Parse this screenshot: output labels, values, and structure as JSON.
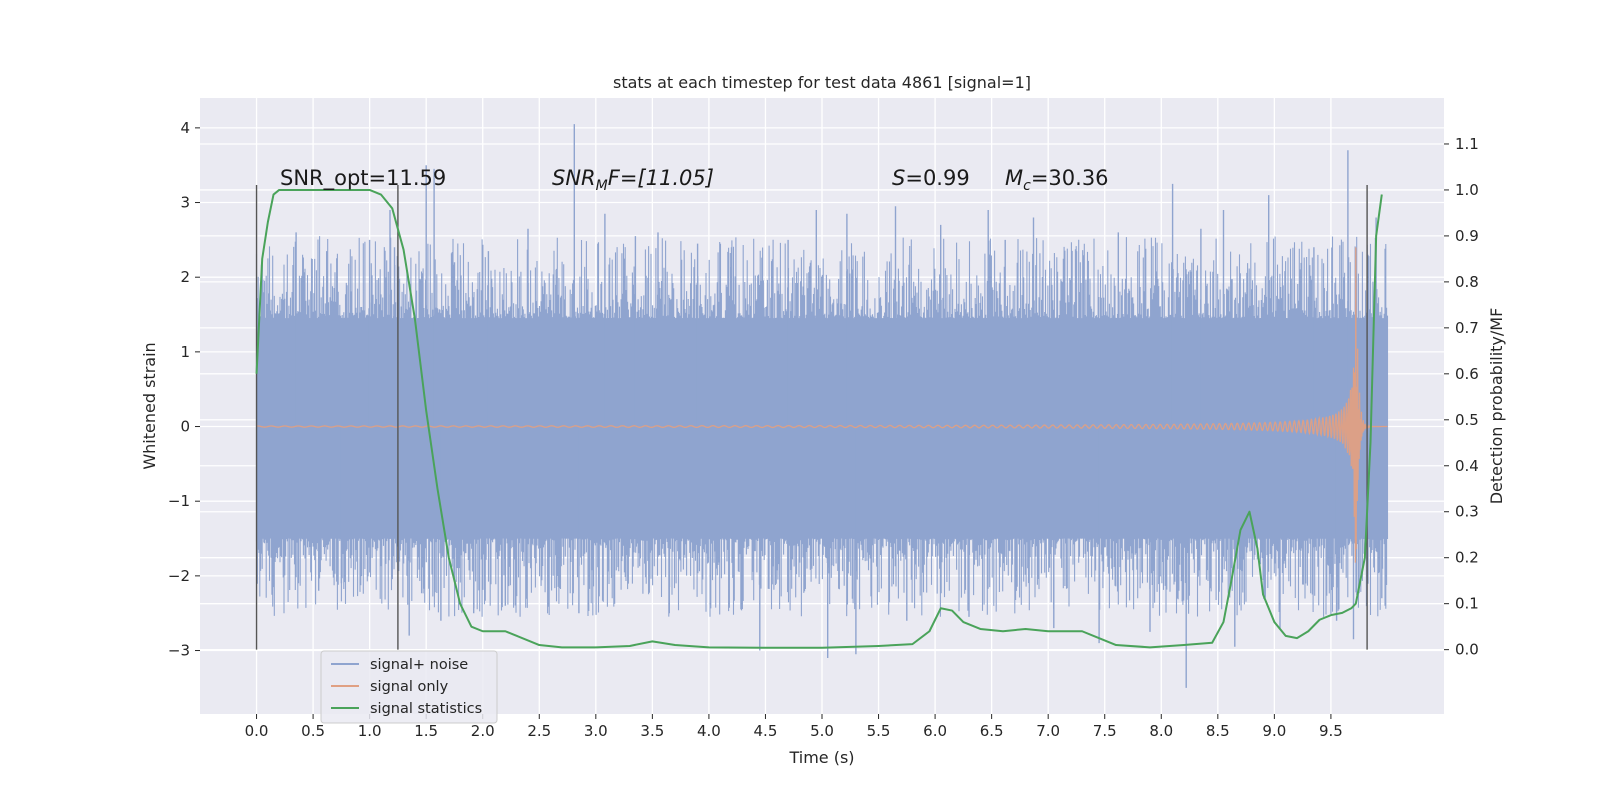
{
  "chart_data": {
    "type": "line",
    "title": "stats at each timestep for test data 4861 [signal=1]",
    "xlabel": "Time (s)",
    "ylabel": "Whitened strain",
    "y2label": "Detection probability/MF",
    "xlim": [
      -0.5,
      10.5
    ],
    "ylim": [
      -3.85,
      4.4
    ],
    "y2lim": [
      -0.14,
      1.2
    ],
    "x_ticks": [
      "0.0",
      "0.5",
      "1.0",
      "1.5",
      "2.0",
      "2.5",
      "3.0",
      "3.5",
      "4.0",
      "4.5",
      "5.0",
      "5.5",
      "6.0",
      "6.5",
      "7.0",
      "7.5",
      "8.0",
      "8.5",
      "9.0",
      "9.5"
    ],
    "y_ticks": [
      "−3",
      "−2",
      "−1",
      "0",
      "1",
      "2",
      "3",
      "4"
    ],
    "y2_ticks": [
      "0.0",
      "0.1",
      "0.2",
      "0.3",
      "0.4",
      "0.5",
      "0.6",
      "0.7",
      "0.8",
      "0.9",
      "1.0",
      "1.1"
    ],
    "grid": true,
    "legend_position": "lower-left",
    "annotations": {
      "snr_opt": "SNR_opt=11.59",
      "snr_mf_sym": "SNR",
      "snr_mf_sub": "M",
      "snr_mf_rest": "F=[11.05]",
      "s_sym": "S",
      "s_rest": "=0.99",
      "mc_sym": "M",
      "mc_sub": "c",
      "mc_rest": "=30.36"
    },
    "vertical_markers_x": [
      0.0,
      1.25,
      9.82
    ],
    "series": [
      {
        "name": "signal+ noise",
        "color": "#8fa4cf",
        "duration": [
          0.0,
          10.0
        ],
        "core_range": [
          -1.5,
          1.45
        ],
        "spikes": [
          {
            "x": 0.05,
            "y": 2.2
          },
          {
            "x": 0.15,
            "y": -2.15
          },
          {
            "x": 0.35,
            "y": 2.6
          },
          {
            "x": 0.55,
            "y": -2.2
          },
          {
            "x": 0.62,
            "y": 2.35
          },
          {
            "x": 0.75,
            "y": -2.1
          },
          {
            "x": 1.0,
            "y": 2.5
          },
          {
            "x": 1.18,
            "y": 2.9
          },
          {
            "x": 1.22,
            "y": 2.4
          },
          {
            "x": 1.35,
            "y": -2.8
          },
          {
            "x": 1.5,
            "y": 3.5
          },
          {
            "x": 1.57,
            "y": 3.45
          },
          {
            "x": 1.63,
            "y": -2.6
          },
          {
            "x": 1.75,
            "y": 2.2
          },
          {
            "x": 1.92,
            "y": -2.5
          },
          {
            "x": 2.05,
            "y": 2.35
          },
          {
            "x": 2.2,
            "y": -2.4
          },
          {
            "x": 2.4,
            "y": 2.65
          },
          {
            "x": 2.65,
            "y": 2.1
          },
          {
            "x": 2.81,
            "y": 4.05
          },
          {
            "x": 2.85,
            "y": -2.5
          },
          {
            "x": 3.08,
            "y": 2.85
          },
          {
            "x": 3.35,
            "y": 2.55
          },
          {
            "x": 3.55,
            "y": 2.6
          },
          {
            "x": 3.65,
            "y": -2.5
          },
          {
            "x": 3.9,
            "y": 2.45
          },
          {
            "x": 4.2,
            "y": 2.4
          },
          {
            "x": 4.45,
            "y": -3.0
          },
          {
            "x": 4.7,
            "y": 2.5
          },
          {
            "x": 4.95,
            "y": 2.9
          },
          {
            "x": 5.05,
            "y": -3.1
          },
          {
            "x": 5.22,
            "y": 2.85
          },
          {
            "x": 5.3,
            "y": -3.05
          },
          {
            "x": 5.65,
            "y": 2.95
          },
          {
            "x": 5.75,
            "y": -2.6
          },
          {
            "x": 6.05,
            "y": 2.7
          },
          {
            "x": 6.3,
            "y": -2.55
          },
          {
            "x": 6.47,
            "y": 2.9
          },
          {
            "x": 6.62,
            "y": 2.5
          },
          {
            "x": 6.87,
            "y": 2.8
          },
          {
            "x": 7.05,
            "y": -2.7
          },
          {
            "x": 7.25,
            "y": 2.35
          },
          {
            "x": 7.45,
            "y": -2.9
          },
          {
            "x": 7.62,
            "y": 2.6
          },
          {
            "x": 7.9,
            "y": -2.75
          },
          {
            "x": 8.1,
            "y": 3.25
          },
          {
            "x": 8.22,
            "y": -3.5
          },
          {
            "x": 8.35,
            "y": 2.65
          },
          {
            "x": 8.55,
            "y": 2.9
          },
          {
            "x": 8.65,
            "y": -2.95
          },
          {
            "x": 8.95,
            "y": 3.1
          },
          {
            "x": 9.05,
            "y": -2.7
          },
          {
            "x": 9.35,
            "y": 2.4
          },
          {
            "x": 9.55,
            "y": -2.6
          },
          {
            "x": 9.65,
            "y": 3.7
          },
          {
            "x": 9.7,
            "y": -2.85
          },
          {
            "x": 9.9,
            "y": 2.8
          },
          {
            "x": 9.95,
            "y": -2.3
          }
        ]
      },
      {
        "name": "signal only",
        "color": "#e0a083",
        "duration": [
          0.0,
          10.0
        ],
        "peak_time": 9.72,
        "peak_amplitude": 2.4
      },
      {
        "name": "signal statistics",
        "color": "#4aa35a",
        "axis": "right",
        "x": [
          0.0,
          0.05,
          0.1,
          0.15,
          0.2,
          0.3,
          0.5,
          0.8,
          1.0,
          1.1,
          1.2,
          1.3,
          1.4,
          1.5,
          1.6,
          1.7,
          1.8,
          1.9,
          2.0,
          2.1,
          2.2,
          2.3,
          2.5,
          2.7,
          3.0,
          3.3,
          3.5,
          3.7,
          4.0,
          4.5,
          5.0,
          5.5,
          5.8,
          5.95,
          6.05,
          6.15,
          6.25,
          6.4,
          6.6,
          6.8,
          7.0,
          7.3,
          7.6,
          7.9,
          8.2,
          8.45,
          8.55,
          8.62,
          8.7,
          8.78,
          8.85,
          8.9,
          9.0,
          9.1,
          9.2,
          9.3,
          9.4,
          9.5,
          9.6,
          9.68,
          9.72,
          9.8,
          9.85,
          9.9,
          9.95
        ],
        "y": [
          0.6,
          0.85,
          0.93,
          0.99,
          1.0,
          1.0,
          1.0,
          1.0,
          1.0,
          0.99,
          0.96,
          0.87,
          0.72,
          0.52,
          0.35,
          0.2,
          0.1,
          0.05,
          0.04,
          0.04,
          0.04,
          0.03,
          0.01,
          0.005,
          0.005,
          0.008,
          0.018,
          0.01,
          0.005,
          0.004,
          0.004,
          0.008,
          0.012,
          0.04,
          0.09,
          0.085,
          0.06,
          0.045,
          0.04,
          0.045,
          0.04,
          0.04,
          0.01,
          0.005,
          0.01,
          0.015,
          0.06,
          0.15,
          0.26,
          0.3,
          0.22,
          0.12,
          0.06,
          0.03,
          0.025,
          0.04,
          0.065,
          0.075,
          0.08,
          0.09,
          0.1,
          0.2,
          0.45,
          0.9,
          0.99
        ]
      }
    ]
  }
}
